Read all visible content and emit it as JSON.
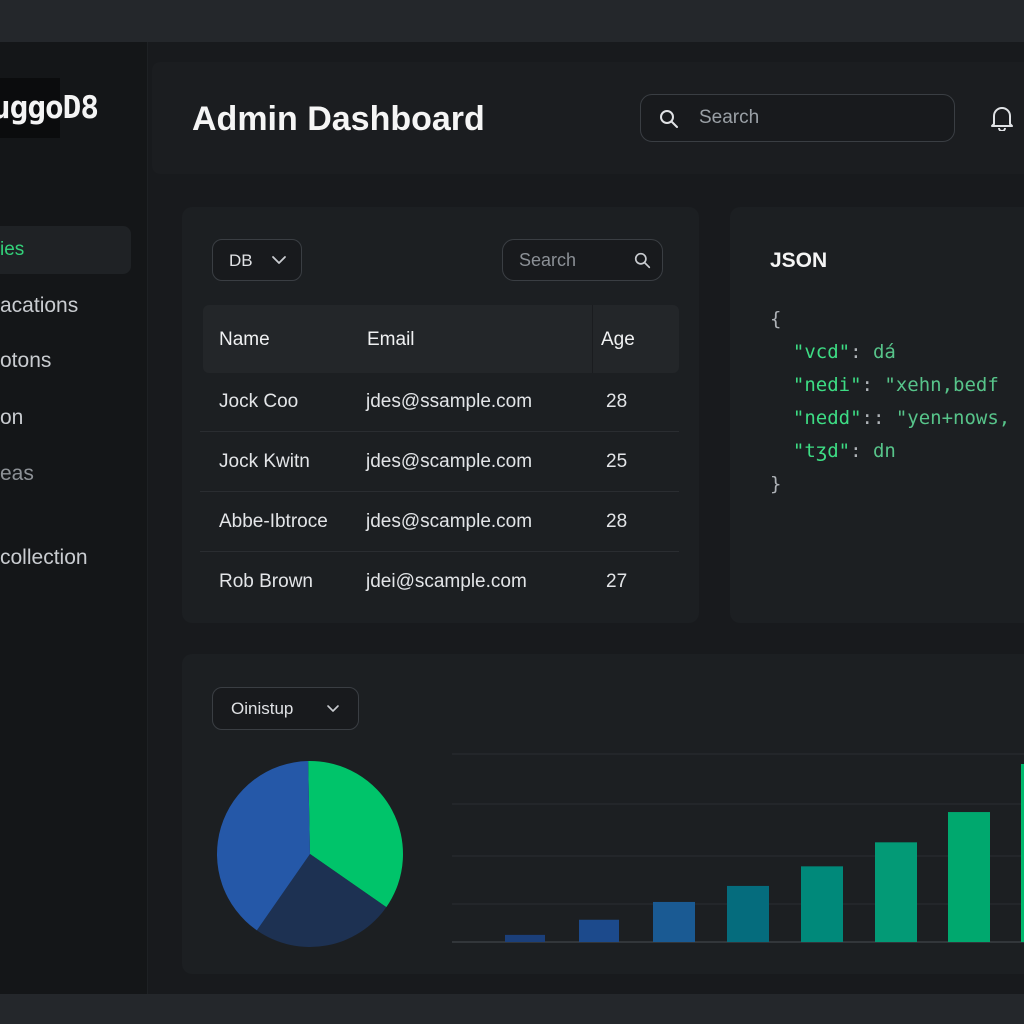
{
  "app": {
    "logo_text": "uggoD8"
  },
  "sidebar": {
    "items": [
      {
        "label": "ies",
        "active": true
      },
      {
        "label": "acations"
      },
      {
        "label": "otons"
      },
      {
        "label": "on"
      },
      {
        "label": "eas"
      },
      {
        "label": "collection"
      }
    ]
  },
  "header": {
    "title_light": "Admin ",
    "title_bold": "Dashboard",
    "search_placeholder": "Search",
    "icons": {
      "search": "search-icon",
      "notifications": "bell-icon"
    }
  },
  "table_card": {
    "db_select": "DB",
    "search_placeholder": "Search",
    "columns": [
      "Name",
      "Email",
      "Age"
    ],
    "rows": [
      {
        "name": "Jock Coo",
        "email": "jdes@ssample.com",
        "age": "28"
      },
      {
        "name": "Jock Kwitn",
        "email": "jdes@scample.com",
        "age": "25"
      },
      {
        "name": "Abbe-Ibtroce",
        "email": "jdes@scample.com",
        "age": "28"
      },
      {
        "name": "Rob Brown",
        "email": "jdei@scample.com",
        "age": "27"
      }
    ]
  },
  "json_card": {
    "title": "JSON",
    "lines": [
      {
        "key": "\"vcd\"",
        "sep": ": ",
        "value": "dá"
      },
      {
        "key": "\"nedi\"",
        "sep": ": ",
        "value": "\"xehn,bedf"
      },
      {
        "key": "\"nedd\"",
        "sep": ":: ",
        "value": "\"yen+nows,"
      },
      {
        "key": "\"tʒd\"",
        "sep": ": ",
        "value": "dn"
      }
    ]
  },
  "chart_card": {
    "select_label": "Oinistup",
    "colors": {
      "pie": [
        "#00c46a",
        "#1d3152",
        "#2558a8"
      ],
      "bars": [
        "#1b3f7a",
        "#1c4a8c",
        "#1a5a93",
        "#056c7d",
        "#00897a",
        "#039a76",
        "#00a86e",
        "#00b86d",
        "#00c46a"
      ]
    },
    "chart_data": [
      {
        "type": "pie",
        "values": [
          35,
          25,
          40
        ]
      },
      {
        "type": "bar",
        "values": [
          8,
          25,
          45,
          63,
          85,
          112,
          146,
          200
        ],
        "clipped_last_value": 260
      }
    ]
  }
}
